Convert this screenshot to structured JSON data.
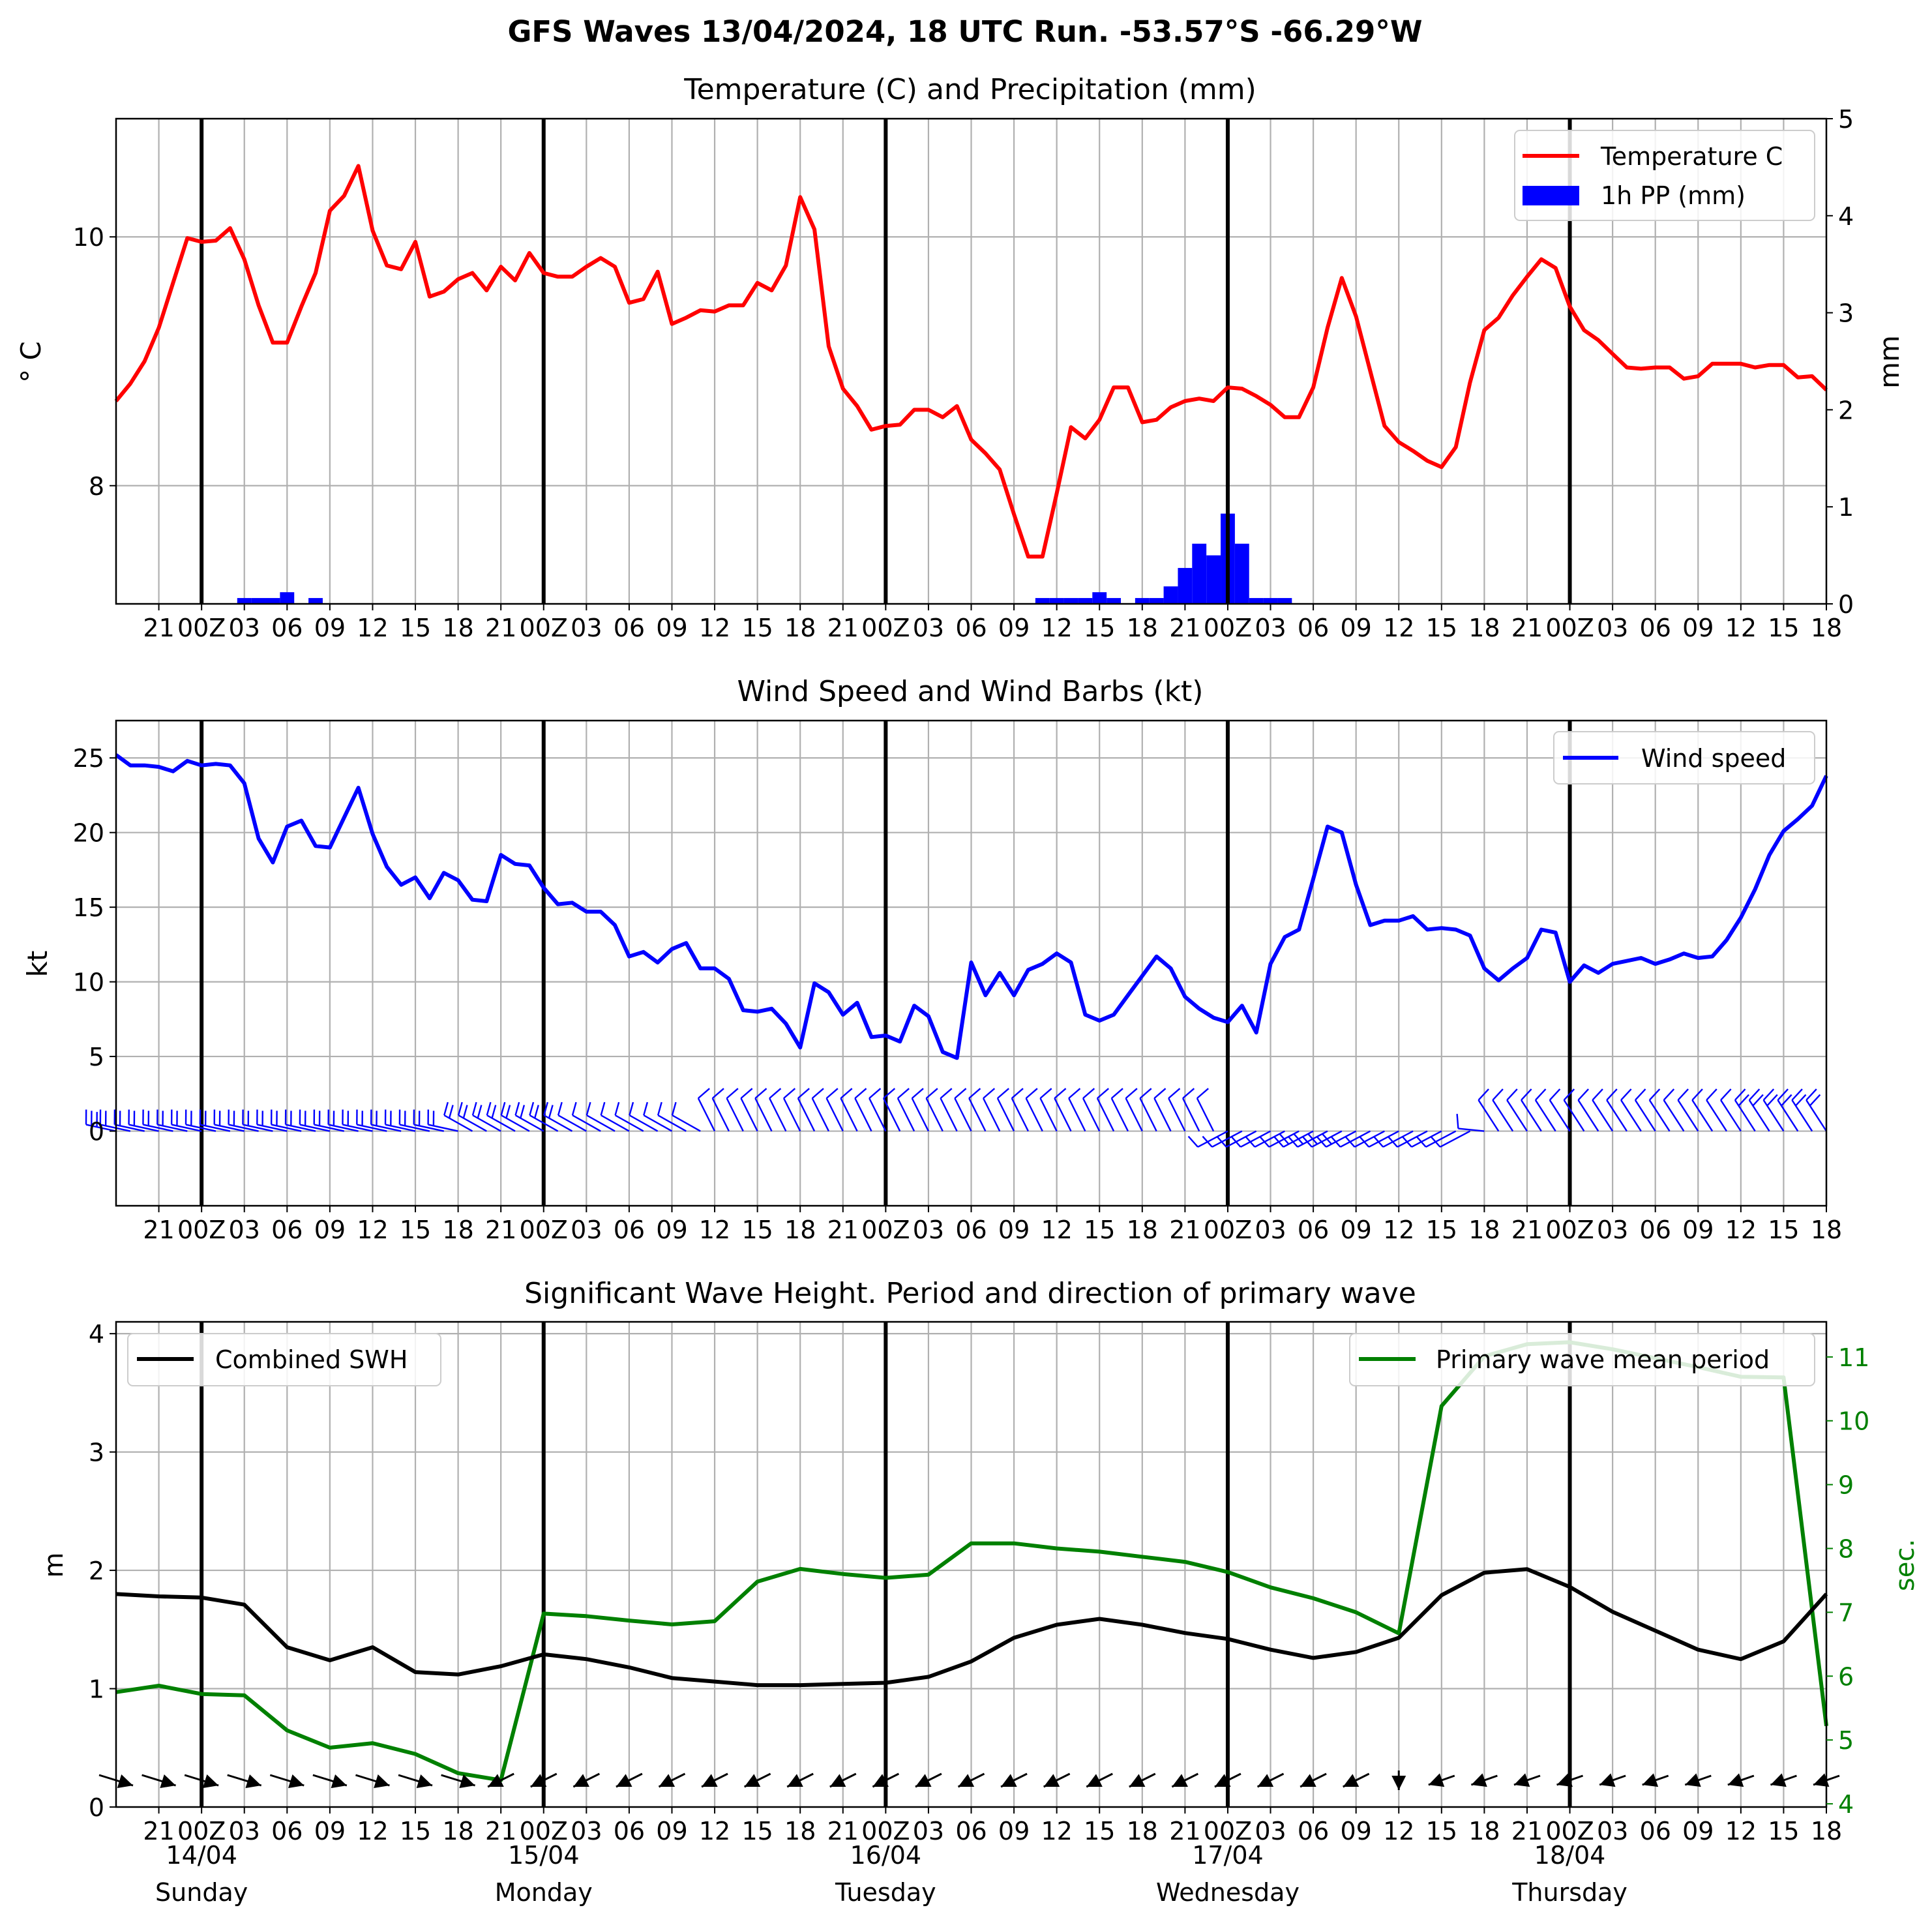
{
  "suptitle": "GFS Waves 13/04/2024, 18 UTC Run. -53.57°S -66.29°W",
  "colors": {
    "temperature": "#ff0000",
    "precip": "#0000ff",
    "wind": "#0000ff",
    "swh": "#000000",
    "period": "#008000",
    "grid": "#b0b0b0",
    "day_line": "#000000"
  },
  "chart_data": [
    {
      "id": "temp",
      "type": "line",
      "title": "Temperature (C) and Precipitation (mm)",
      "ylabel": "° C",
      "ylabel_right": "mm",
      "x_start_hour": 18,
      "x_step_hours": 3,
      "xlim_hours": [
        18,
        138
      ],
      "ylim": [
        7.05,
        10.95
      ],
      "yticks": [
        8,
        10
      ],
      "ytick_labels": [
        "8",
        "10"
      ],
      "ylim_right": [
        0,
        5
      ],
      "yticks_right": [
        0,
        1,
        2,
        3,
        4,
        5
      ],
      "ytick_labels_right": [
        "0",
        "1",
        "2",
        "3",
        "4",
        "5"
      ],
      "xtick_labels": [
        "21",
        "00Z",
        "03",
        "06",
        "09",
        "12",
        "15",
        "18",
        "21",
        "00Z",
        "03",
        "06",
        "09",
        "12",
        "15",
        "18",
        "21",
        "00Z",
        "03",
        "06",
        "09",
        "12",
        "15",
        "18",
        "21",
        "00Z",
        "03",
        "06",
        "09",
        "12",
        "15",
        "18",
        "21",
        "00Z",
        "03",
        "06",
        "09",
        "12",
        "15",
        "18"
      ],
      "legend": [
        "Temperature C",
        "1h PP (mm)"
      ],
      "legend_position": "upper right",
      "temperature_step_hours": 1,
      "temperature_values": [
        8.68,
        8.82,
        9.0,
        9.27,
        9.63,
        9.99,
        9.96,
        9.97,
        10.07,
        9.82,
        9.45,
        9.15,
        9.15,
        9.44,
        9.71,
        10.21,
        10.33,
        10.57,
        10.05,
        9.77,
        9.74,
        9.96,
        9.52,
        9.56,
        9.66,
        9.71,
        9.57,
        9.76,
        9.65,
        9.87,
        9.71,
        9.68,
        9.68,
        9.76,
        9.83,
        9.76,
        9.47,
        9.5,
        9.72,
        9.3,
        9.35,
        9.41,
        9.4,
        9.45,
        9.45,
        9.63,
        9.57,
        9.77,
        10.32,
        10.06,
        9.12,
        8.78,
        8.64,
        8.45,
        8.48,
        8.49,
        8.61,
        8.61,
        8.55,
        8.64,
        8.37,
        8.26,
        8.13,
        7.77,
        7.43,
        7.43,
        7.94,
        8.47,
        8.38,
        8.53,
        8.79,
        8.79,
        8.51,
        8.53,
        8.63,
        8.68,
        8.7,
        8.68,
        8.79,
        8.78,
        8.72,
        8.65,
        8.55,
        8.55,
        8.79,
        9.27,
        9.67,
        9.36,
        8.92,
        8.48,
        8.35,
        8.28,
        8.2,
        8.15,
        8.31,
        8.83,
        9.25,
        9.35,
        9.53,
        9.68,
        9.82,
        9.75,
        9.44,
        9.25,
        9.17,
        9.06,
        8.95,
        8.94,
        8.95,
        8.95,
        8.86,
        8.88,
        8.98,
        8.98,
        8.98,
        8.95,
        8.97,
        8.97,
        8.87,
        8.88,
        8.77
      ],
      "precip_step_hours": 1,
      "precip_values": [
        0,
        0,
        0,
        0,
        0,
        0,
        0,
        0,
        0,
        0.06,
        0.06,
        0.06,
        0.12,
        0,
        0.06,
        0,
        0,
        0,
        0,
        0,
        0,
        0,
        0,
        0,
        0,
        0,
        0,
        0,
        0,
        0,
        0,
        0,
        0,
        0,
        0,
        0,
        0,
        0,
        0,
        0,
        0,
        0,
        0,
        0,
        0,
        0,
        0,
        0,
        0,
        0,
        0,
        0,
        0,
        0,
        0,
        0,
        0,
        0,
        0,
        0,
        0,
        0,
        0,
        0,
        0,
        0.06,
        0.06,
        0.06,
        0.06,
        0.12,
        0.06,
        0,
        0.06,
        0.06,
        0.18,
        0.37,
        0.62,
        0.5,
        0.93,
        0.62,
        0.06,
        0.06,
        0.06,
        0,
        0,
        0,
        0,
        0,
        0,
        0,
        0,
        0,
        0,
        0,
        0,
        0,
        0,
        0,
        0,
        0,
        0,
        0,
        0,
        0,
        0,
        0,
        0,
        0,
        0,
        0,
        0,
        0,
        0,
        0,
        0,
        0,
        0,
        0,
        0,
        0,
        0
      ]
    },
    {
      "id": "wind",
      "type": "line",
      "title": "Wind Speed and Wind Barbs (kt)",
      "ylabel": "kt",
      "x_start_hour": 18,
      "x_step_hours": 1,
      "xlim_hours": [
        18,
        138
      ],
      "ylim": [
        -5,
        27.5
      ],
      "yticks": [
        0,
        5,
        10,
        15,
        20,
        25
      ],
      "ytick_labels": [
        "0",
        "5",
        "10",
        "15",
        "20",
        "25"
      ],
      "xtick_labels": [
        "21",
        "00Z",
        "03",
        "06",
        "09",
        "12",
        "15",
        "18",
        "21",
        "00Z",
        "03",
        "06",
        "09",
        "12",
        "15",
        "18",
        "21",
        "00Z",
        "03",
        "06",
        "09",
        "12",
        "15",
        "18",
        "21",
        "00Z",
        "03",
        "06",
        "09",
        "12",
        "15",
        "18",
        "21",
        "00Z",
        "03",
        "06",
        "09",
        "12",
        "15",
        "18"
      ],
      "legend": [
        "Wind speed"
      ],
      "legend_position": "upper right",
      "series": [
        {
          "name": "Wind speed",
          "values": [
            25.2,
            24.5,
            24.5,
            24.4,
            24.1,
            24.8,
            24.5,
            24.6,
            24.5,
            23.3,
            19.6,
            18.0,
            20.4,
            20.8,
            19.1,
            19.0,
            21.0,
            23.0,
            19.9,
            17.7,
            16.5,
            17.0,
            15.6,
            17.3,
            16.8,
            15.5,
            15.4,
            18.5,
            17.9,
            17.8,
            16.3,
            15.2,
            15.3,
            14.7,
            14.7,
            13.8,
            11.7,
            12.0,
            11.3,
            12.2,
            12.6,
            10.9,
            10.9,
            10.2,
            8.1,
            8.0,
            8.2,
            7.2,
            5.6,
            9.9,
            9.3,
            7.8,
            8.6,
            6.3,
            6.4,
            6.0,
            8.4,
            7.7,
            5.3,
            4.9,
            11.3,
            9.1,
            10.6,
            9.1,
            10.8,
            11.2,
            11.9,
            11.3,
            7.8,
            7.4,
            7.8,
            9.1,
            10.4,
            11.7,
            10.9,
            9.0,
            8.2,
            7.6,
            7.3,
            8.4,
            6.6,
            11.2,
            13.0,
            13.5,
            16.9,
            20.4,
            20.0,
            16.5,
            13.8,
            14.1,
            14.1,
            14.4,
            13.5,
            13.6,
            13.5,
            13.1,
            10.9,
            10.1,
            10.9,
            11.6,
            13.5,
            13.3,
            10.0,
            11.1,
            10.6,
            11.2,
            11.4,
            11.6,
            11.2,
            11.5,
            11.9,
            11.6,
            11.7,
            12.8,
            14.3,
            16.2,
            18.5,
            20.1,
            20.9,
            21.8,
            23.8
          ]
        }
      ],
      "barbs": "wind barbs along the 0 kt line, one per hour"
    },
    {
      "id": "wave",
      "type": "line",
      "title": "Significant Wave Height. Period and direction of primary wave",
      "ylabel": "m",
      "ylabel_right": "sec.",
      "x_start_hour": 18,
      "x_step_hours": 3,
      "xlim_hours": [
        18,
        138
      ],
      "ylim": [
        0,
        4.1
      ],
      "yticks": [
        0,
        1,
        2,
        3,
        4
      ],
      "ytick_labels": [
        "0",
        "1",
        "2",
        "3",
        "4"
      ],
      "ylim_right": [
        3.95,
        11.55
      ],
      "yticks_right": [
        4,
        5,
        6,
        7,
        8,
        9,
        10,
        11
      ],
      "ytick_labels_right": [
        "4",
        "5",
        "6",
        "7",
        "8",
        "9",
        "10",
        "11"
      ],
      "xtick_labels": [
        "21",
        "00Z",
        "03",
        "06",
        "09",
        "12",
        "15",
        "18",
        "21",
        "00Z",
        "03",
        "06",
        "09",
        "12",
        "15",
        "18",
        "21",
        "00Z",
        "03",
        "06",
        "09",
        "12",
        "15",
        "18",
        "21",
        "00Z",
        "03",
        "06",
        "09",
        "12",
        "15",
        "18",
        "21",
        "00Z",
        "03",
        "06",
        "09",
        "12",
        "15",
        "18"
      ],
      "day_labels": [
        {
          "date": "14/04",
          "day": "Sunday"
        },
        {
          "date": "15/04",
          "day": "Monday"
        },
        {
          "date": "16/04",
          "day": "Tuesday"
        },
        {
          "date": "17/04",
          "day": "Wednesday"
        },
        {
          "date": "18/04",
          "day": "Thursday"
        }
      ],
      "legend_left": [
        "Combined SWH"
      ],
      "legend_left_position": "upper left",
      "legend_right": [
        "Primary wave mean period"
      ],
      "legend_right_position": "upper right",
      "series": [
        {
          "name": "Combined SWH",
          "values": [
            1.8,
            1.78,
            1.77,
            1.71,
            1.35,
            1.24,
            1.35,
            1.14,
            1.12,
            1.19,
            1.29,
            1.25,
            1.18,
            1.09,
            1.06,
            1.03,
            1.03,
            1.04,
            1.05,
            1.1,
            1.23,
            1.43,
            1.54,
            1.59,
            1.54,
            1.47,
            1.42,
            1.33,
            1.26,
            1.31,
            1.43,
            1.79,
            1.98,
            2.01,
            1.86,
            1.65,
            1.49,
            1.33,
            1.25,
            1.4,
            1.8
          ]
        },
        {
          "name": "Primary wave mean period",
          "values": [
            5.75,
            5.85,
            5.72,
            5.7,
            5.15,
            4.88,
            4.95,
            4.78,
            4.48,
            4.37,
            6.98,
            6.94,
            6.87,
            6.81,
            6.86,
            7.48,
            7.68,
            7.6,
            7.54,
            7.59,
            8.08,
            8.08,
            8.0,
            7.95,
            7.87,
            7.79,
            7.63,
            7.39,
            7.22,
            7.0,
            6.67,
            10.23,
            11.01,
            11.2,
            11.23,
            11.12,
            10.98,
            10.84,
            10.69,
            10.68,
            5.22
          ]
        }
      ],
      "arrows": "primary wave direction arrows, one per 3 hours"
    }
  ]
}
